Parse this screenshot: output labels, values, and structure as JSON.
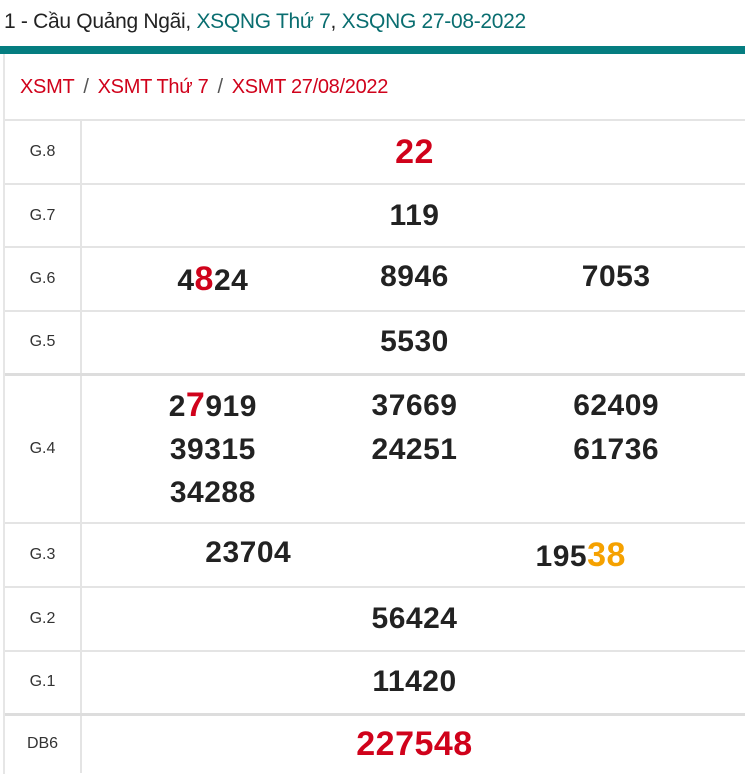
{
  "title": {
    "prefix": "1 - Cầu Quảng Ngãi, ",
    "link1": "XSQNG Thứ 7",
    "comma": ", ",
    "link2": "XSQNG 27-08-2022"
  },
  "breadcrumb": [
    "XSMT",
    "XSMT Thứ 7",
    "XSMT 27/08/2022"
  ],
  "breadcrumb_sep": "/",
  "colors": {
    "accent": "#057d80",
    "red": "#d0021b",
    "orange": "#f5a100"
  },
  "prizes": [
    {
      "label": "G.8",
      "numbers": [
        [
          {
            "t": "22",
            "s": "red"
          }
        ]
      ]
    },
    {
      "label": "G.7",
      "numbers": [
        [
          {
            "t": "119"
          }
        ]
      ]
    },
    {
      "label": "G.6",
      "numbers": [
        [
          {
            "t": "4"
          },
          {
            "t": "8",
            "s": "red"
          },
          {
            "t": "24"
          }
        ],
        [
          {
            "t": "8946"
          }
        ],
        [
          {
            "t": "7053"
          }
        ]
      ]
    },
    {
      "label": "G.5",
      "numbers": [
        [
          {
            "t": "5530"
          }
        ]
      ]
    },
    {
      "label": "G.4",
      "numbers": [
        [
          {
            "t": "2"
          },
          {
            "t": "7",
            "s": "red"
          },
          {
            "t": "919"
          }
        ],
        [
          {
            "t": "37669"
          }
        ],
        [
          {
            "t": "62409"
          }
        ],
        [
          {
            "t": "39315"
          }
        ],
        [
          {
            "t": "24251"
          }
        ],
        [
          {
            "t": "61736"
          }
        ],
        [
          {
            "t": "34288"
          }
        ]
      ]
    },
    {
      "label": "G.3",
      "numbers": [
        [
          {
            "t": "23704"
          }
        ],
        [
          {
            "t": "195"
          },
          {
            "t": "38",
            "s": "orange"
          }
        ]
      ]
    },
    {
      "label": "G.2",
      "numbers": [
        [
          {
            "t": "56424"
          }
        ]
      ]
    },
    {
      "label": "G.1",
      "numbers": [
        [
          {
            "t": "11420"
          }
        ]
      ]
    },
    {
      "label": "DB6",
      "numbers": [
        [
          {
            "t": "227548",
            "s": "red"
          }
        ]
      ]
    }
  ]
}
